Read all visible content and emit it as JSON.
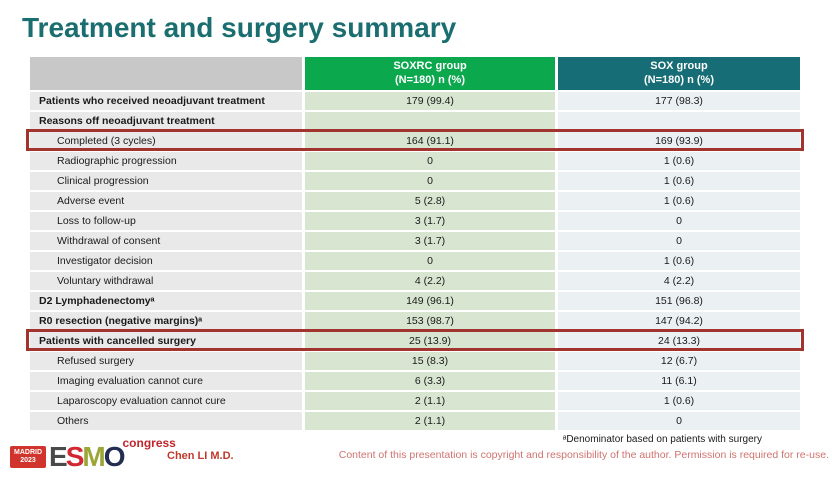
{
  "slide": {
    "title": "Treatment and surgery summary"
  },
  "table": {
    "header": {
      "soxrc": {
        "line1": "SOXRC group",
        "line2": "(N=180)  n (%)"
      },
      "sox": {
        "line1": "SOX group",
        "line2": "(N=180)  n (%)"
      }
    },
    "rows": [
      {
        "label": "Patients who received neoadjuvant treatment",
        "soxrc": "179 (99.4)",
        "sox": "177 (98.3)",
        "bold": true,
        "indent": false,
        "highlight": false
      },
      {
        "label": "Reasons off neoadjuvant treatment",
        "soxrc": "",
        "sox": "",
        "bold": true,
        "indent": false,
        "highlight": false
      },
      {
        "label": "Completed (3 cycles)",
        "soxrc": "164 (91.1)",
        "sox": "169 (93.9)",
        "bold": false,
        "indent": true,
        "highlight": true
      },
      {
        "label": "Radiographic progression",
        "soxrc": "0",
        "sox": "1 (0.6)",
        "bold": false,
        "indent": true,
        "highlight": false
      },
      {
        "label": "Clinical progression",
        "soxrc": "0",
        "sox": "1 (0.6)",
        "bold": false,
        "indent": true,
        "highlight": false
      },
      {
        "label": "Adverse event",
        "soxrc": "5 (2.8)",
        "sox": "1 (0.6)",
        "bold": false,
        "indent": true,
        "highlight": false
      },
      {
        "label": "Loss to follow-up",
        "soxrc": "3 (1.7)",
        "sox": "0",
        "bold": false,
        "indent": true,
        "highlight": false
      },
      {
        "label": "Withdrawal of consent",
        "soxrc": "3 (1.7)",
        "sox": "0",
        "bold": false,
        "indent": true,
        "highlight": false
      },
      {
        "label": "Investigator decision",
        "soxrc": "0",
        "sox": "1 (0.6)",
        "bold": false,
        "indent": true,
        "highlight": false
      },
      {
        "label": "Voluntary withdrawal",
        "soxrc": "4 (2.2)",
        "sox": "4 (2.2)",
        "bold": false,
        "indent": true,
        "highlight": false
      },
      {
        "label": "D2 Lymphadenectomyᵃ",
        "soxrc": "149 (96.1)",
        "sox": "151 (96.8)",
        "bold": true,
        "indent": false,
        "highlight": false
      },
      {
        "label": "R0 resection (negative margins)ᵃ",
        "soxrc": "153 (98.7)",
        "sox": "147 (94.2)",
        "bold": true,
        "indent": false,
        "highlight": false
      },
      {
        "label": "Patients with cancelled surgery",
        "soxrc": "25 (13.9)",
        "sox": "24 (13.3)",
        "bold": true,
        "indent": false,
        "highlight": true
      },
      {
        "label": "Refused surgery",
        "soxrc": "15 (8.3)",
        "sox": "12 (6.7)",
        "bold": false,
        "indent": true,
        "highlight": false
      },
      {
        "label": "Imaging evaluation cannot cure",
        "soxrc": "6 (3.3)",
        "sox": "11 (6.1)",
        "bold": false,
        "indent": true,
        "highlight": false
      },
      {
        "label": "Laparoscopy evaluation cannot cure",
        "soxrc": "2 (1.1)",
        "sox": "1 (0.6)",
        "bold": false,
        "indent": true,
        "highlight": false
      },
      {
        "label": "Others",
        "soxrc": "2 (1.1)",
        "sox": "0",
        "bold": false,
        "indent": true,
        "highlight": false
      }
    ]
  },
  "footer": {
    "logo": {
      "badge_line1": "MADRID",
      "badge_line2": "2023",
      "letter_e": "E",
      "letter_s": "S",
      "letter_m": "M",
      "letter_o": "O",
      "congress": "congress"
    },
    "author": "Chen LI M.D.",
    "footnote": "ᵃDenominator based on patients with surgery",
    "copyright": "Content of this presentation is copyright and responsibility of the author. Permission is required for re-use."
  }
}
